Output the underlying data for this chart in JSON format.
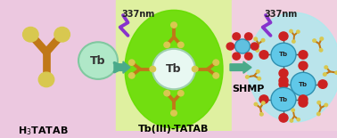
{
  "bg_left_color": "#ecc8e0",
  "bg_center_color": "#dff0a0",
  "bg_right_color": "#f0d8e8",
  "green_ellipse_color": "#66dd00",
  "right_ellipse_color": "#a8ecf0",
  "tb_free_color": "#b0e8c8",
  "tb_complex_color": "#e8f8f0",
  "tb_right_color": "#60c8e8",
  "tatab_body": "#c07818",
  "tatab_tip": "#d8c850",
  "tatab_red_tip": "#cc2222",
  "arrow_color": "#4aaa8a",
  "lightning_color": "#8833cc",
  "shmp_center": "#60c0e0",
  "shmp_red": "#cc2222",
  "label_h3tatab": "H$_3$TATAB",
  "label_tb_tatab": "Tb(III)-TATAB",
  "label_337nm": "337nm",
  "label_shmp": "SHMP",
  "label_fontsize": 8,
  "annotation_fontsize": 7
}
